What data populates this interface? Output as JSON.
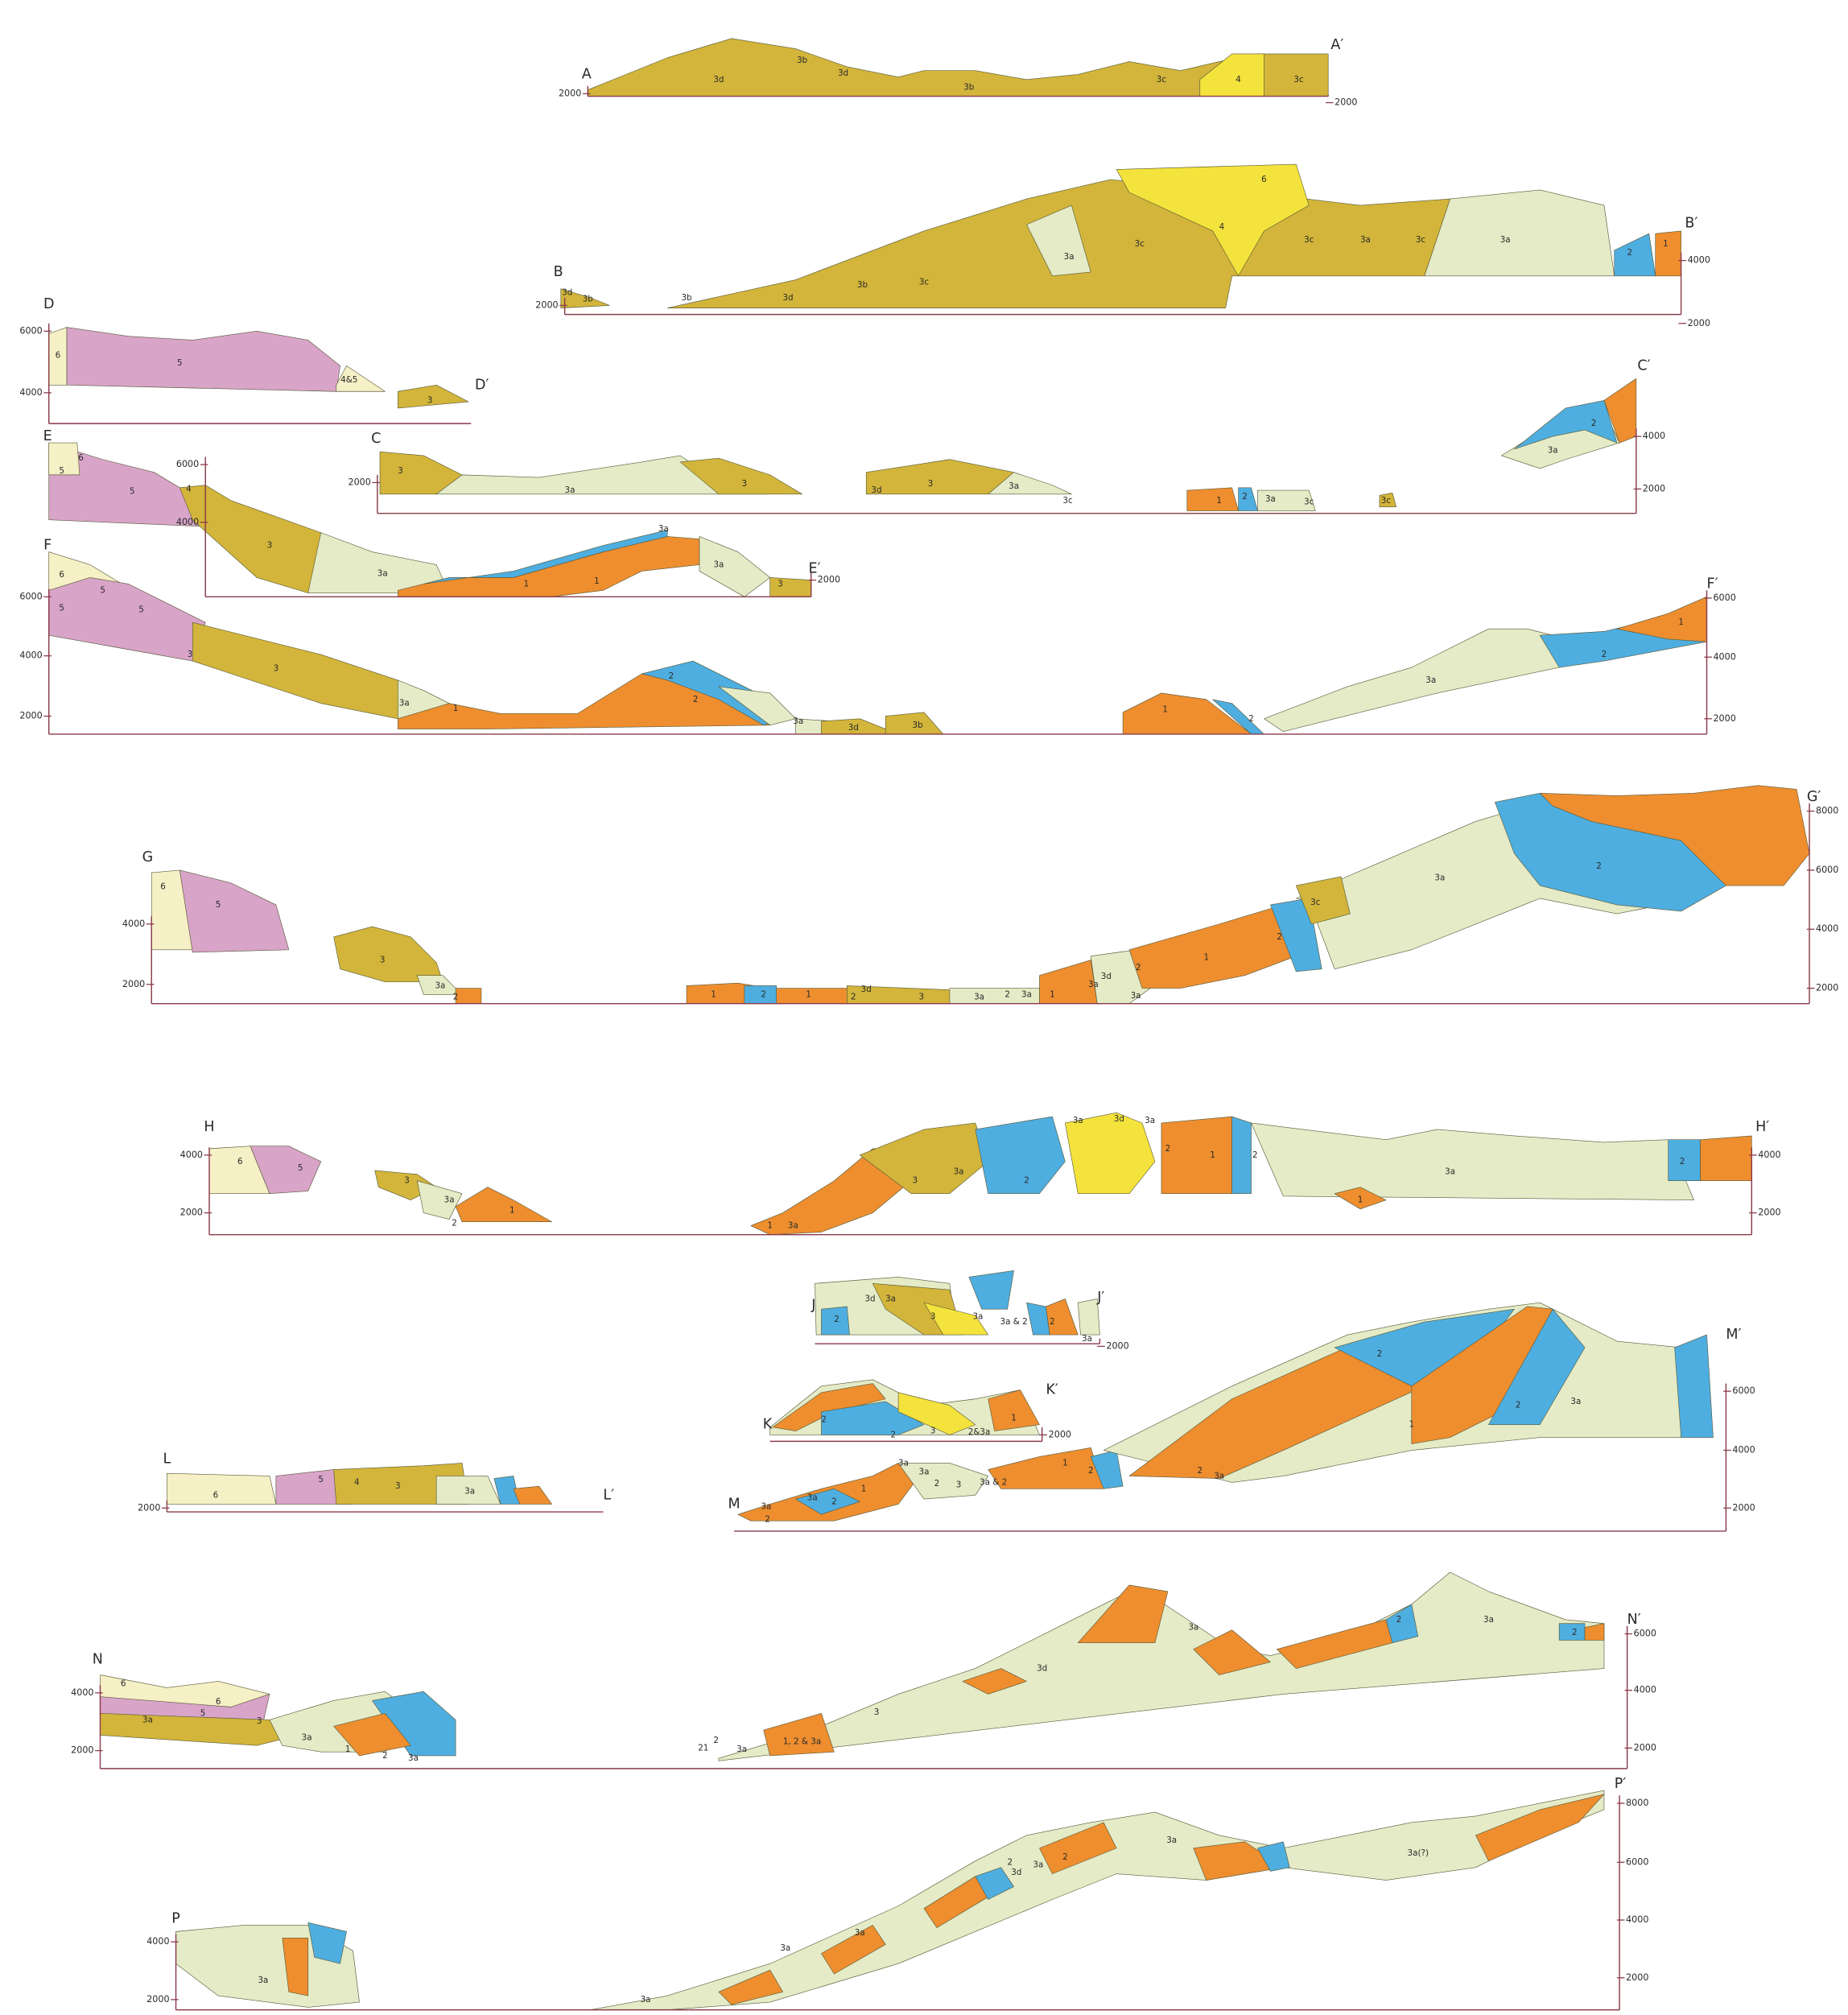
{
  "sections": [
    {
      "start_label": "A",
      "end_label": "A′",
      "left_elevations": [
        "2000"
      ],
      "right_elevations": [
        "2000"
      ],
      "units": [
        "3d",
        "3b",
        "3d",
        "3b",
        "3c",
        "4",
        "3c"
      ]
    },
    {
      "start_label": "B",
      "end_label": "B′",
      "left_elevations": [
        "2000"
      ],
      "right_elevations": [
        "4000",
        "2000"
      ],
      "units": [
        "3d",
        "3b",
        "3b",
        "3d",
        "3b",
        "3c",
        "3a",
        "3c",
        "4",
        "6",
        "3c",
        "3a",
        "3c",
        "3a",
        "2",
        "1"
      ]
    },
    {
      "start_label": "D",
      "end_label": "D′",
      "left_elevations": [
        "6000",
        "4000"
      ],
      "right_elevations": [],
      "units": [
        "6",
        "5",
        "4&5",
        "3"
      ]
    },
    {
      "start_label": "C",
      "end_label": "C′",
      "left_elevations": [
        "2000"
      ],
      "right_elevations": [
        "4000",
        "2000"
      ],
      "units": [
        "3",
        "3a",
        "3",
        "3d",
        "3",
        "3a",
        "3c",
        "1",
        "2",
        "3a",
        "3c",
        "3c",
        "3a",
        "2"
      ]
    },
    {
      "start_label": "E",
      "end_label": "E′",
      "left_elevations": [
        "6000",
        "4000"
      ],
      "right_elevations": [
        "2000"
      ],
      "units": [
        "6",
        "5",
        "5",
        "4",
        "3",
        "3a",
        "3a",
        "1",
        "1",
        "3a",
        "3"
      ]
    },
    {
      "start_label": "F",
      "end_label": "F′",
      "left_elevations": [
        "6000",
        "4000",
        "2000"
      ],
      "right_elevations": [
        "6000",
        "4000",
        "2000"
      ],
      "units": [
        "6",
        "5",
        "5",
        "5",
        "3",
        "3",
        "3a",
        "1",
        "2",
        "2",
        "3a",
        "3d",
        "3b",
        "1",
        "2",
        "3a",
        "2",
        "1"
      ]
    },
    {
      "start_label": "G",
      "end_label": "G′",
      "left_elevations": [
        "4000",
        "2000"
      ],
      "right_elevations": [
        "8000",
        "6000",
        "4000",
        "2000"
      ],
      "units": [
        "6",
        "5",
        "3",
        "3a",
        "2",
        "1",
        "2",
        "1",
        "2",
        "3d",
        "3",
        "3a",
        "2",
        "3a",
        "1",
        "3a",
        "3d",
        "3a",
        "2",
        "1",
        "2",
        "3c",
        "3a",
        "2"
      ]
    },
    {
      "start_label": "H",
      "end_label": "H′",
      "left_elevations": [
        "4000",
        "2000"
      ],
      "right_elevations": [
        "4000",
        "2000"
      ],
      "units": [
        "6",
        "5",
        "3",
        "3a",
        "2",
        "1",
        "1",
        "3a",
        "3",
        "3a",
        "3a",
        "3d",
        "3a",
        "2",
        "2",
        "1",
        "2",
        "3a",
        "1",
        "2"
      ]
    },
    {
      "start_label": "J",
      "end_label": "J′",
      "left_elevations": [],
      "right_elevations": [
        "2000"
      ],
      "units": [
        "2",
        "3d",
        "3a",
        "3",
        "3a",
        "3a & 2",
        "2",
        "3a"
      ]
    },
    {
      "start_label": "K",
      "end_label": "K′",
      "left_elevations": [],
      "right_elevations": [
        "2000"
      ],
      "units": [
        "2",
        "2",
        "3",
        "2&3a",
        "1"
      ]
    },
    {
      "start_label": "L",
      "end_label": "L′",
      "left_elevations": [
        "2000"
      ],
      "right_elevations": [],
      "units": [
        "6",
        "5",
        "4",
        "3",
        "3a"
      ]
    },
    {
      "start_label": "M",
      "end_label": "M′",
      "left_elevations": [],
      "right_elevations": [
        "6000",
        "4000",
        "2000"
      ],
      "units": [
        "3a",
        "2",
        "3a",
        "2",
        "1",
        "3a",
        "3a",
        "2",
        "3",
        "3a & 2",
        "1",
        "2",
        "2",
        "3a",
        "2",
        "1",
        "2",
        "3a"
      ]
    },
    {
      "start_label": "N",
      "end_label": "N′",
      "left_elevations": [
        "4000",
        "2000"
      ],
      "right_elevations": [
        "6000",
        "4000",
        "2000"
      ],
      "units": [
        "6",
        "6",
        "3a",
        "5",
        "3",
        "3a",
        "1",
        "2",
        "3a",
        "21",
        "2",
        "3a",
        "1, 2 & 3a",
        "3",
        "3d",
        "3a",
        "2",
        "3a",
        "2"
      ]
    },
    {
      "start_label": "P",
      "end_label": "P′",
      "left_elevations": [
        "4000",
        "2000"
      ],
      "right_elevations": [
        "8000",
        "6000",
        "4000",
        "2000"
      ],
      "units": [
        "3a",
        "3a",
        "3a",
        "3a",
        "2",
        "3d",
        "3a",
        "2",
        "3a",
        "3a(?)"
      ]
    }
  ]
}
